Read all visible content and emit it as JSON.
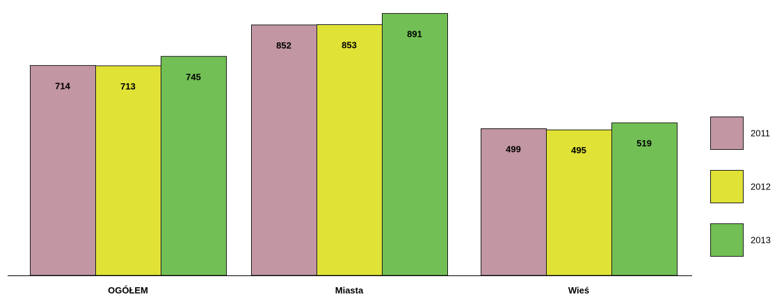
{
  "chart_data": {
    "type": "bar",
    "categories": [
      "OGÓŁEM",
      "Miasta",
      "Wieś"
    ],
    "series": [
      {
        "name": "2011",
        "color": "#c296a2",
        "values": [
          714,
          852,
          499
        ]
      },
      {
        "name": "2012",
        "color": "#e0e236",
        "values": [
          713,
          853,
          495
        ]
      },
      {
        "name": "2013",
        "color": "#72c055",
        "values": [
          745,
          891,
          519
        ]
      }
    ],
    "title": "",
    "xlabel": "",
    "ylabel": "",
    "ylim": [
      0,
      900
    ],
    "grid": false,
    "legend_position": "right"
  }
}
